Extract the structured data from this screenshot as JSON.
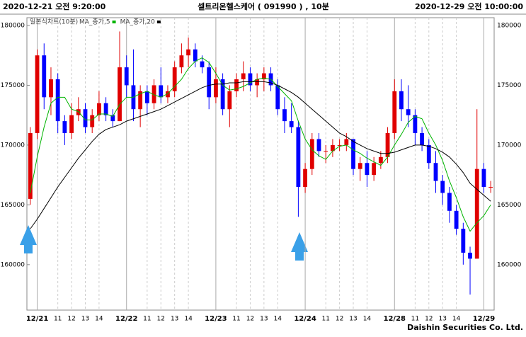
{
  "header": {
    "left": "2020-12-21 오전 9:20:00",
    "center": "셀트리온헬스케어 ( 091990 ) , 10분",
    "right": "2020-12-29 오전 10:00:00"
  },
  "footer": "Daishin Securities Co. Ltd.",
  "chart_data": {
    "type": "candlestick",
    "candle_name": "일본식차트(10분)",
    "up_color": "#e00000",
    "down_color": "#0000ff",
    "categories": [
      null,
      "12/21",
      null,
      null,
      "11",
      null,
      "12",
      null,
      "13",
      null,
      "14",
      null,
      null,
      null,
      "12/22",
      null,
      null,
      "11",
      null,
      "12",
      null,
      "13",
      null,
      "14",
      null,
      null,
      null,
      "12/23",
      null,
      null,
      "11",
      null,
      "12",
      null,
      "13",
      null,
      "14",
      null,
      null,
      null,
      "12/24",
      null,
      null,
      "11",
      null,
      "12",
      null,
      "13",
      null,
      "14",
      null,
      null,
      null,
      "12/28",
      null,
      null,
      "11",
      null,
      "12",
      null,
      "13",
      null,
      "14",
      null,
      null,
      null,
      "12/29",
      null
    ],
    "open": [
      165500,
      171000,
      177500,
      174000,
      175500,
      172000,
      171000,
      172500,
      173000,
      171500,
      172500,
      173500,
      172500,
      172000,
      176500,
      175000,
      173000,
      174500,
      173500,
      175000,
      174000,
      174500,
      176500,
      177500,
      178000,
      177000,
      176500,
      174000,
      175500,
      173000,
      174500,
      175500,
      176000,
      175000,
      175500,
      176000,
      175000,
      173000,
      172000,
      171500,
      166500,
      168000,
      170500,
      169500,
      169500,
      170000,
      170000,
      170500,
      168000,
      168500,
      167500,
      168500,
      169000,
      171000,
      174500,
      173000,
      172500,
      171000,
      170000,
      168500,
      167000,
      166000,
      164500,
      163000,
      161000,
      160500,
      168000,
      166500
    ],
    "high": [
      171500,
      178000,
      178500,
      176500,
      176000,
      172500,
      173500,
      174000,
      173500,
      173000,
      174500,
      174000,
      173000,
      179500,
      177500,
      178000,
      175000,
      175000,
      175500,
      176500,
      175000,
      177000,
      178500,
      179000,
      178500,
      177500,
      177000,
      176500,
      176000,
      175000,
      176000,
      177000,
      176500,
      176000,
      176500,
      176500,
      175500,
      174000,
      173500,
      172000,
      168500,
      171000,
      171000,
      170000,
      170500,
      170500,
      171000,
      170500,
      169000,
      169500,
      169000,
      169500,
      171500,
      175500,
      175500,
      175000,
      173000,
      171500,
      170500,
      169500,
      167500,
      166500,
      165000,
      163500,
      161500,
      173000,
      168500,
      167000
    ],
    "low": [
      165000,
      170500,
      173000,
      172500,
      171000,
      170000,
      170500,
      172000,
      171000,
      171000,
      172000,
      172000,
      171500,
      172000,
      174000,
      172000,
      171500,
      172500,
      173000,
      173500,
      173500,
      174000,
      176000,
      176500,
      176500,
      176000,
      173000,
      173500,
      172500,
      171500,
      174000,
      174500,
      174500,
      174000,
      174500,
      174500,
      172500,
      171000,
      171000,
      164000,
      166000,
      167500,
      169000,
      168500,
      169000,
      169500,
      169500,
      167500,
      167000,
      166500,
      167000,
      168000,
      168500,
      170500,
      172000,
      171500,
      170000,
      169500,
      168000,
      166000,
      165000,
      163500,
      162500,
      160000,
      157500,
      160500,
      166000,
      166000
    ],
    "close": [
      171000,
      177500,
      174000,
      175500,
      172000,
      171000,
      172500,
      173000,
      171500,
      172500,
      173500,
      172500,
      172000,
      176500,
      175000,
      173000,
      174500,
      173500,
      175000,
      174000,
      174500,
      176500,
      177500,
      178000,
      177000,
      176500,
      174000,
      175500,
      173000,
      174500,
      175500,
      176000,
      175000,
      175500,
      176000,
      175000,
      173000,
      172000,
      171500,
      166500,
      168000,
      170500,
      169500,
      169500,
      170000,
      170000,
      170500,
      168000,
      168500,
      167500,
      168500,
      169000,
      171000,
      174500,
      173000,
      172500,
      171000,
      170000,
      168500,
      167000,
      166000,
      164500,
      163000,
      161000,
      160500,
      168000,
      166500,
      166500
    ],
    "series": [
      {
        "name": "MA_종가,5",
        "color": "#00b400",
        "values": [
          166000,
          169000,
          171500,
          173500,
          174000,
          174000,
          173000,
          172800,
          172100,
          172100,
          172600,
          172600,
          172400,
          173400,
          174000,
          174000,
          174300,
          174500,
          174200,
          174000,
          174300,
          174900,
          175500,
          176400,
          177000,
          177300,
          176900,
          176000,
          175000,
          174600,
          174700,
          174900,
          175200,
          175500,
          175600,
          175500,
          174900,
          174300,
          173700,
          172000,
          170500,
          169600,
          169100,
          168800,
          169500,
          169900,
          170000,
          169600,
          169300,
          168900,
          168600,
          168300,
          169000,
          170000,
          170900,
          171900,
          172400,
          172200,
          171000,
          170000,
          168700,
          167000,
          165600,
          164000,
          162800,
          163500,
          164100,
          165000
        ]
      },
      {
        "name": "MA_종가,20",
        "color": "#000000",
        "values": [
          163000,
          163800,
          164700,
          165600,
          166500,
          167300,
          168100,
          168900,
          169600,
          170300,
          170900,
          171300,
          171500,
          171700,
          172000,
          172200,
          172400,
          172600,
          172800,
          173000,
          173300,
          173600,
          173900,
          174200,
          174500,
          174800,
          175000,
          175100,
          175100,
          175200,
          175200,
          175300,
          175300,
          175300,
          175300,
          175200,
          175000,
          174700,
          174400,
          174000,
          173500,
          173000,
          172500,
          172000,
          171500,
          171000,
          170700,
          170300,
          170000,
          169700,
          169500,
          169300,
          169300,
          169400,
          169600,
          169800,
          170000,
          170000,
          169900,
          169700,
          169400,
          169000,
          168400,
          167700,
          166800,
          166300,
          165800,
          165300
        ]
      }
    ],
    "ylim": [
      156200,
      180650
    ],
    "yticks": [
      160000,
      165000,
      170000,
      175000,
      180000
    ],
    "grid": true
  }
}
